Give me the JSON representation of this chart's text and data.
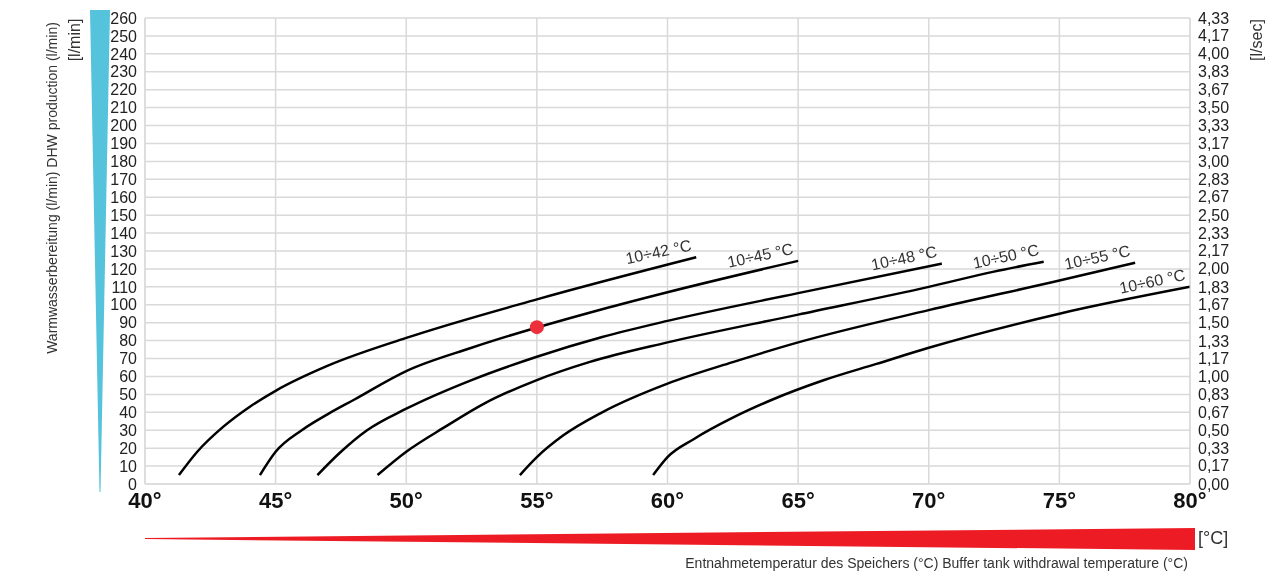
{
  "chart_data": {
    "type": "line",
    "xlabel": "Entnahmetemperatur des Speichers (°C) Buffer tank withdrawal temperature (°C)",
    "ylabel": "Warmwasserbereitung (l/min) DHW production (l/min)",
    "y2label": "[l/sec]",
    "annotations": [
      "[l/min]",
      "[°C]"
    ],
    "xlim": [
      40,
      80
    ],
    "xticks": [
      {
        "value": 40,
        "label": "40°"
      },
      {
        "value": 45,
        "label": "45°"
      },
      {
        "value": 50,
        "label": "50°"
      },
      {
        "value": 55,
        "label": "55°"
      },
      {
        "value": 60,
        "label": "60°"
      },
      {
        "value": 65,
        "label": "65°"
      },
      {
        "value": 70,
        "label": "70°"
      },
      {
        "value": 75,
        "label": "75°"
      },
      {
        "value": 80,
        "label": "80°"
      }
    ],
    "ylim": [
      0,
      260
    ],
    "yticks": [
      0,
      10,
      20,
      30,
      40,
      50,
      60,
      70,
      80,
      90,
      100,
      110,
      120,
      130,
      140,
      150,
      160,
      170,
      180,
      190,
      200,
      210,
      220,
      230,
      240,
      250,
      260
    ],
    "y2lim": [
      0,
      4.33
    ],
    "y2ticks": [
      {
        "value": 0,
        "label": "0,00"
      },
      {
        "value": 0.17,
        "label": "0,17"
      },
      {
        "value": 0.33,
        "label": "0,33"
      },
      {
        "value": 0.5,
        "label": "0,50"
      },
      {
        "value": 0.67,
        "label": "0,67"
      },
      {
        "value": 0.83,
        "label": "0,83"
      },
      {
        "value": 1,
        "label": "1,00"
      },
      {
        "value": 1.17,
        "label": "1,17"
      },
      {
        "value": 1.33,
        "label": "1,33"
      },
      {
        "value": 1.5,
        "label": "1,50"
      },
      {
        "value": 1.67,
        "label": "1,67"
      },
      {
        "value": 1.83,
        "label": "1,83"
      },
      {
        "value": 2,
        "label": "2,00"
      },
      {
        "value": 2.17,
        "label": "2,17"
      },
      {
        "value": 2.33,
        "label": "2,33"
      },
      {
        "value": 2.5,
        "label": "2,50"
      },
      {
        "value": 2.67,
        "label": "2,67"
      },
      {
        "value": 2.83,
        "label": "2,83"
      },
      {
        "value": 3,
        "label": "3,00"
      },
      {
        "value": 3.17,
        "label": "3,17"
      },
      {
        "value": 3.33,
        "label": "3,33"
      },
      {
        "value": 3.5,
        "label": "3,50"
      },
      {
        "value": 3.67,
        "label": "3,67"
      },
      {
        "value": 3.83,
        "label": "3,83"
      },
      {
        "value": 4,
        "label": "4,00"
      },
      {
        "value": 4.17,
        "label": "4,17"
      },
      {
        "value": 4.33,
        "label": "4,33"
      }
    ],
    "grid": true,
    "legend": false,
    "marker": "none",
    "line_style": "solid",
    "series": [
      {
        "name": "10÷42 °C",
        "color": "#000000",
        "x": [
          41.3,
          42,
          43,
          44,
          45,
          47,
          50,
          55,
          61.1
        ],
        "values": [
          5,
          18,
          32,
          43,
          52,
          66,
          81.5,
          103,
          126.5
        ]
      },
      {
        "name": "10÷45 °C",
        "color": "#000000",
        "x": [
          44.4,
          45,
          46,
          47,
          48,
          50,
          52.5,
          57.5,
          60,
          65
        ],
        "values": [
          5,
          18,
          30,
          39,
          47,
          63,
          76,
          97.5,
          107,
          124.5
        ]
      },
      {
        "name": "10÷48 °C",
        "color": "#000000",
        "x": [
          46.6,
          47.5,
          48.5,
          50,
          52.5,
          55,
          57.5,
          60,
          65,
          70.5
        ],
        "values": [
          5,
          18,
          30,
          42,
          58,
          71,
          82,
          91,
          106.5,
          123
        ]
      },
      {
        "name": "10÷50 °C",
        "color": "#000000",
        "x": [
          48.9,
          50,
          51.5,
          53,
          55,
          57,
          60,
          65,
          70,
          72.5,
          74.4
        ],
        "values": [
          5,
          18,
          32,
          45,
          58,
          68,
          79,
          94.5,
          110,
          118.5,
          124
        ]
      },
      {
        "name": "10÷55 °C",
        "color": "#000000",
        "x": [
          54.35,
          55,
          56,
          57.5,
          60,
          62.5,
          65,
          70,
          75,
          77.9
        ],
        "values": [
          5,
          15,
          27,
          40,
          56,
          68,
          79,
          97,
          113.5,
          123.4
        ]
      },
      {
        "name": "10÷60 °C",
        "color": "#000000",
        "x": [
          59.45,
          60,
          61,
          62.5,
          64,
          66,
          68,
          70,
          75,
          80
        ],
        "values": [
          5,
          15,
          25,
          37,
          47,
          58,
          67,
          76,
          95,
          110
        ]
      },
      {
        "type": "scatter",
        "color": "#ec2f3a",
        "marker": "circle",
        "x": [
          55
        ],
        "values": [
          87.5
        ]
      }
    ]
  }
}
